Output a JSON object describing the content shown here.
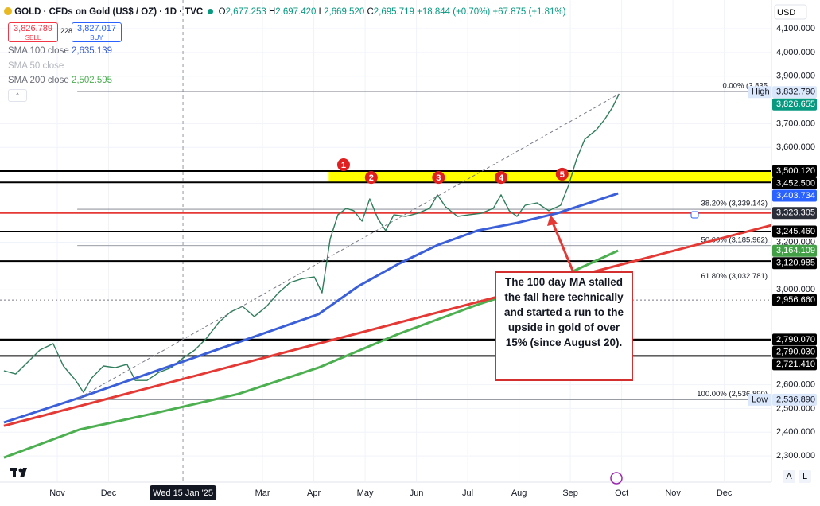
{
  "header": {
    "symbol": "GOLD · CFDs on Gold (US$ / OZ) · 1D · TVC",
    "ohlc": [
      {
        "key": "O",
        "value": "2,677.253"
      },
      {
        "key": "H",
        "value": "2,697.420"
      },
      {
        "key": "L",
        "value": "2,669.520"
      },
      {
        "key": "C",
        "value": "2,695.719"
      }
    ],
    "change": "+18.844 (+0.70%)",
    "change_ytd": "+67.875 (+1.81%)"
  },
  "trade": {
    "sell_price": "3,826.789",
    "sell": "SELL",
    "spread": "228",
    "buy_price": "3,827.017",
    "buy": "BUY"
  },
  "currency": "USD",
  "buttons": [
    "A",
    "L"
  ],
  "chart_data": {
    "type": "line",
    "grid": true,
    "xlim": [
      -1.116,
      13.92
    ],
    "xticks": [
      {
        "value": 0,
        "label": "Nov"
      },
      {
        "value": 1,
        "label": "Dec"
      },
      {
        "value": 4,
        "label": "Mar"
      },
      {
        "value": 5,
        "label": "Apr"
      },
      {
        "value": 6,
        "label": "May"
      },
      {
        "value": 7,
        "label": "Jun"
      },
      {
        "value": 8,
        "label": "Jul"
      },
      {
        "value": 9,
        "label": "Aug"
      },
      {
        "value": 10,
        "label": "Sep"
      },
      {
        "value": 11,
        "label": "Oct"
      },
      {
        "value": 12,
        "label": "Nov"
      },
      {
        "value": 13,
        "label": "Dec"
      }
    ],
    "ylim": [
      2193,
      4137
    ],
    "yticks": [
      {
        "value": 4100,
        "label": "4,100.000"
      },
      {
        "value": 4000,
        "label": "4,000.000"
      },
      {
        "value": 3900,
        "label": "3,900.000"
      },
      {
        "value": 3700,
        "label": "3,700.000"
      },
      {
        "value": 3600,
        "label": "3,600.000"
      },
      {
        "value": 3200,
        "label": "3,200.000"
      },
      {
        "value": 3000,
        "label": "3,000.000"
      },
      {
        "value": 2600,
        "label": "2,600.000"
      },
      {
        "value": 2500,
        "label": "2,500.000"
      },
      {
        "value": 2400,
        "label": "2,400.000"
      },
      {
        "value": 2300,
        "label": "2,300.000"
      }
    ],
    "crosshair": {
      "x": 2.45,
      "label": "Wed 15 Jan '25"
    },
    "zones": [
      {
        "from": 3452.5,
        "to": 3500.12,
        "start": 5.29,
        "color": "#ffff00"
      }
    ],
    "fib_start": 0.39,
    "fib": [
      {
        "value": 3835,
        "label": "0.00% (3,835"
      },
      {
        "value": 3339.143,
        "label": "38.20% (3,339.143)"
      },
      {
        "value": 3185.962,
        "label": "50.00% (3,185.962)"
      },
      {
        "value": 3032.781,
        "label": "61.80% (3,032.781)"
      },
      {
        "value": 2536.89,
        "label": "100.00% (2,536.890)"
      }
    ],
    "series": [
      {
        "color": "#2e7d5b",
        "width": 1.4,
        "x": [
          -1.04,
          -0.81,
          -0.57,
          -0.34,
          -0.08,
          0.12,
          0.36,
          0.51,
          0.67,
          0.9,
          1.13,
          1.36,
          1.52,
          1.75,
          1.98,
          2.22,
          2.45,
          2.68,
          2.91,
          3.15,
          3.38,
          3.61,
          3.84,
          4.08,
          4.31,
          4.54,
          4.78,
          5.01,
          5.16,
          5.32,
          5.47,
          5.63,
          5.78,
          5.94,
          6.09,
          6.25,
          6.4,
          6.56,
          6.79,
          7.02,
          7.26,
          7.41,
          7.57,
          7.8,
          8.03,
          8.26,
          8.5,
          8.65,
          8.81,
          8.96,
          9.12,
          9.35,
          9.58,
          9.81,
          9.97,
          10.12,
          10.28,
          10.51,
          10.67,
          10.82,
          10.95
        ],
        "values": [
          2659,
          2645,
          2696,
          2746,
          2773,
          2679,
          2618,
          2568,
          2628,
          2679,
          2672,
          2686,
          2618,
          2618,
          2652,
          2672,
          2712,
          2746,
          2796,
          2863,
          2907,
          2930,
          2887,
          2930,
          2987,
          3031,
          3047,
          3054,
          2987,
          3215,
          3316,
          3343,
          3333,
          3289,
          3383,
          3299,
          3249,
          3316,
          3309,
          3322,
          3343,
          3400,
          3349,
          3309,
          3316,
          3322,
          3343,
          3400,
          3333,
          3309,
          3356,
          3366,
          3333,
          3356,
          3443,
          3550,
          3634,
          3674,
          3718,
          3768,
          3825
        ]
      },
      {
        "name": "SMA 100 close",
        "legend_value": "2,635.139",
        "color": "#3a5fd9",
        "width": 3,
        "x": [
          -1.04,
          0.43,
          1.98,
          3.53,
          5.09,
          5.86,
          6.64,
          7.41,
          8.19,
          8.96,
          9.74,
          10.51,
          10.93
        ],
        "values": [
          2441,
          2545,
          2662,
          2779,
          2897,
          3014,
          3108,
          3188,
          3249,
          3282,
          3322,
          3376,
          3406
        ]
      },
      {
        "name": "SMA 200 close",
        "legend_value": "2,502.595",
        "color": "#4caf50",
        "width": 3,
        "x": [
          -1.04,
          0.43,
          1.98,
          3.53,
          5.09,
          6.64,
          8.19,
          9.74,
          10.93
        ],
        "values": [
          2293,
          2411,
          2484,
          2561,
          2672,
          2813,
          2937,
          3047,
          3165
        ]
      },
      {
        "color": "#e53935",
        "width": 3,
        "x": [
          -1.04,
          13.92
        ],
        "values": [
          2427,
          3272
        ]
      },
      {
        "color": "#787b86",
        "width": 1,
        "dash": true,
        "x": [
          0.43,
          10.95
        ],
        "values": [
          2545,
          3825
        ]
      }
    ],
    "hidden_indicators": [
      "SMA 50 close"
    ],
    "markers": [
      {
        "label": "1",
        "x": 5.58,
        "y": 3527
      },
      {
        "label": "2",
        "x": 6.12,
        "y": 3473
      },
      {
        "label": "3",
        "x": 7.43,
        "y": 3473
      },
      {
        "label": "4",
        "x": 8.65,
        "y": 3473
      },
      {
        "label": "5",
        "x": 9.84,
        "y": 3487
      }
    ],
    "price_labels": [
      {
        "value": 3832.79,
        "label": "3,832.790",
        "tag": "High",
        "bg": "#dbe8fb",
        "fg": "#131722",
        "line": "none"
      },
      {
        "value": 3826.655,
        "label": "3,826.655",
        "bg": "#089981",
        "fg": "#ffffff",
        "line": "none"
      },
      {
        "value": 3500.12,
        "label": "3,500.120",
        "bg": "#000000",
        "fg": "#ffffff",
        "line": "solid",
        "line_color": "#000000"
      },
      {
        "value": 3452.5,
        "label": "3,452.500",
        "bg": "#000000",
        "fg": "#ffffff",
        "line": "solid",
        "line_color": "#000000"
      },
      {
        "value": 3403.734,
        "label": "3,403.734",
        "bg": "#2962ff",
        "fg": "#ffffff",
        "line": "none"
      },
      {
        "value": 3323.305,
        "label": "3,323.305",
        "bg": "#2a2e39",
        "fg": "#ffffff",
        "line": "solid",
        "line_color": "#e53935"
      },
      {
        "value": 3245.46,
        "label": "3,245.460",
        "bg": "#000000",
        "fg": "#ffffff",
        "line": "solid",
        "line_color": "#000000"
      },
      {
        "value": 3164.109,
        "label": "3,164.109",
        "bg": "#43a047",
        "fg": "#ffffff",
        "line": "none"
      },
      {
        "value": 3120.985,
        "label": "3,120.985",
        "bg": "#000000",
        "fg": "#ffffff",
        "line": "solid",
        "line_color": "#000000"
      },
      {
        "value": 2956.66,
        "label": "2,956.660",
        "bg": "#000000",
        "fg": "#ffffff",
        "line": "dotted",
        "line_color": "#787b86"
      },
      {
        "value": 2790.07,
        "label": "2,790.070",
        "bg": "#000000",
        "fg": "#ffffff",
        "line": "solid",
        "line_color": "#000000"
      },
      {
        "value": 2790.03,
        "label": "2,790.030",
        "bg": "#000000",
        "fg": "#ffffff",
        "line": "solid",
        "line_color": "#000000"
      },
      {
        "value": 2721.41,
        "label": "2,721.410",
        "bg": "#000000",
        "fg": "#ffffff",
        "line": "solid",
        "line_color": "#000000"
      },
      {
        "value": 2536.89,
        "label": "2,536.890",
        "tag": "Low",
        "bg": "#dbe8fb",
        "fg": "#131722",
        "line": "none"
      }
    ],
    "annotation": "The 100 day MA stalled the fall here technically and started a run to the upside in gold of over 15% (since August 20)."
  }
}
